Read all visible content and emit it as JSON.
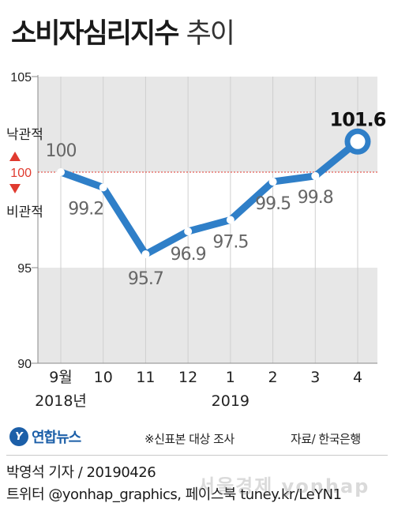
{
  "title": {
    "main": "소비자심리지수",
    "sub": "추이"
  },
  "chart_data": {
    "type": "line",
    "title": "소비자심리지수 추이",
    "categories": [
      "9월",
      "10",
      "11",
      "12",
      "1",
      "2",
      "3",
      "4"
    ],
    "year_labels": [
      "2018년",
      "2019"
    ],
    "values": [
      100,
      99.2,
      95.7,
      96.9,
      97.5,
      99.5,
      99.8,
      101.6
    ],
    "value_labels": [
      "100",
      "99.2",
      "95.7",
      "96.9",
      "97.5",
      "99.5",
      "99.8",
      "101.6"
    ],
    "ylim": [
      90,
      105
    ],
    "y_ticks": [
      "105",
      "100",
      "95",
      "90"
    ],
    "reference_line": {
      "value": 100,
      "label": "100",
      "above_label": "낙관적",
      "below_label": "비관적"
    },
    "grid": false,
    "colors": {
      "line": "#2f7fc8",
      "band": "#e7e7e7",
      "reference": "#e03a2f",
      "marker_up": "#e03a2f",
      "marker_down": "#e03a2f"
    }
  },
  "footer": {
    "logo_mark": "Y",
    "logo_text": "연합뉴스",
    "sample_note": "※신표본 대상 조사",
    "source": "자료/ 한국은행"
  },
  "credits": {
    "byline": "박영석 기자 / 20190426",
    "social": "트위터 @yonhap_graphics, 페이스북 tuney.kr/LeYN1"
  },
  "watermark": "서울경제 yonhap"
}
